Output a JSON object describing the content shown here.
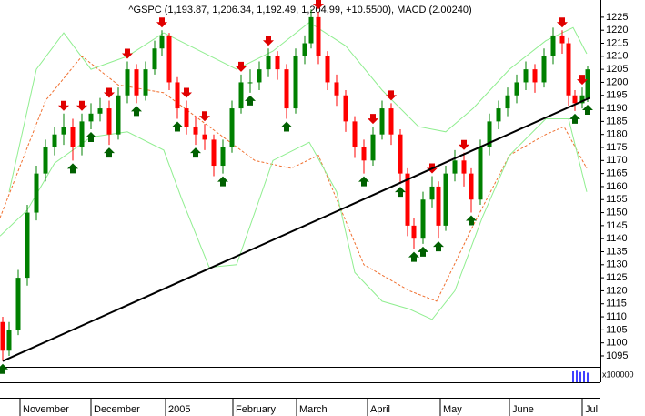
{
  "chart_data": {
    "type": "candlestick",
    "title": "^GSPC (1,193.87, 1,206.34, 1,192.49, 1,204.99, +10.5500), MACD (2.00240)",
    "xlim": [
      0,
      165
    ],
    "ylim": [
      1090.8,
      1231.6
    ],
    "yticks": [
      1095,
      1100,
      1105,
      1110,
      1115,
      1120,
      1125,
      1130,
      1135,
      1140,
      1145,
      1150,
      1155,
      1160,
      1165,
      1170,
      1175,
      1180,
      1185,
      1190,
      1195,
      1200,
      1205,
      1210,
      1215,
      1220,
      1225
    ],
    "xticks": [
      {
        "value": 5.5,
        "label": "November"
      },
      {
        "value": 25,
        "label": "December"
      },
      {
        "value": 45.5,
        "label": "2005"
      },
      {
        "value": 64,
        "label": "February"
      },
      {
        "value": 81.5,
        "label": "March"
      },
      {
        "value": 101,
        "label": "April"
      },
      {
        "value": 121,
        "label": "May"
      },
      {
        "value": 140,
        "label": "June"
      },
      {
        "value": 160,
        "label": "Jul"
      }
    ],
    "up_color": "#008000",
    "down_color": "#ff0000",
    "x": [
      0.75,
      2.5,
      5,
      7.5,
      10,
      12.5,
      15,
      17.5,
      20,
      22.5,
      25,
      27.5,
      30,
      32.5,
      35,
      37.5,
      40,
      42.5,
      44.5,
      46.5,
      48.75,
      51.25,
      53.75,
      56.25,
      58.75,
      61.25,
      63.75,
      66.25,
      68.75,
      71.25,
      73.75,
      76.25,
      78.75,
      81.25,
      83.75,
      85.5,
      87.5,
      90,
      92.5,
      95,
      97.5,
      100,
      102.5,
      105,
      107.5,
      110,
      112,
      113.75,
      116.25,
      118.75,
      120.5,
      122.5,
      125,
      127.5,
      129.5,
      132,
      134.5,
      137,
      139.5,
      142,
      144.5,
      147,
      149.5,
      152,
      154.5,
      156.25,
      158,
      160,
      161.5
    ],
    "open": [
      1108,
      1097,
      1105,
      1125,
      1150,
      1165,
      1175,
      1180,
      1183,
      1175,
      1185,
      1188,
      1190,
      1180,
      1195,
      1205,
      1195,
      1205,
      1213,
      1218,
      1200,
      1190,
      1183,
      1180,
      1178,
      1168,
      1175,
      1190,
      1200,
      1200,
      1205,
      1210,
      1205,
      1190,
      1210,
      1215,
      1225,
      1210,
      1200,
      1195,
      1185,
      1175,
      1170,
      1180,
      1190,
      1180,
      1165,
      1145,
      1140,
      1155,
      1160,
      1145,
      1165,
      1170,
      1165,
      1155,
      1175,
      1185,
      1190,
      1195,
      1200,
      1205,
      1200,
      1210,
      1218,
      1215,
      1195,
      1192,
      1193.87
    ],
    "high": [
      1110,
      1108,
      1128,
      1153,
      1168,
      1178,
      1183,
      1188,
      1186,
      1188,
      1192,
      1194,
      1193,
      1198,
      1208,
      1207,
      1208,
      1216,
      1220,
      1219,
      1202,
      1193,
      1187,
      1184,
      1180,
      1178,
      1193,
      1203,
      1205,
      1208,
      1213,
      1212,
      1207,
      1213,
      1218,
      1228,
      1227,
      1212,
      1203,
      1197,
      1187,
      1178,
      1183,
      1193,
      1192,
      1182,
      1167,
      1148,
      1158,
      1164,
      1162,
      1168,
      1174,
      1173,
      1167,
      1178,
      1188,
      1193,
      1198,
      1203,
      1208,
      1207,
      1213,
      1221,
      1220,
      1217,
      1197,
      1198,
      1206.34
    ],
    "low": [
      1093,
      1095,
      1103,
      1122,
      1147,
      1162,
      1172,
      1176,
      1170,
      1172,
      1182,
      1185,
      1176,
      1178,
      1192,
      1192,
      1193,
      1203,
      1210,
      1197,
      1186,
      1180,
      1176,
      1174,
      1164,
      1165,
      1173,
      1188,
      1196,
      1197,
      1202,
      1201,
      1186,
      1188,
      1207,
      1213,
      1207,
      1197,
      1191,
      1181,
      1171,
      1165,
      1168,
      1178,
      1176,
      1161,
      1141,
      1136,
      1138,
      1152,
      1140,
      1143,
      1162,
      1160,
      1150,
      1153,
      1172,
      1182,
      1187,
      1192,
      1197,
      1196,
      1198,
      1207,
      1211,
      1191,
      1189,
      1190,
      1192.49
    ],
    "close": [
      1097,
      1105,
      1125,
      1150,
      1165,
      1175,
      1180,
      1183,
      1175,
      1185,
      1188,
      1190,
      1180,
      1195,
      1205,
      1195,
      1205,
      1213,
      1218,
      1200,
      1190,
      1183,
      1180,
      1178,
      1168,
      1175,
      1190,
      1200,
      1200,
      1205,
      1210,
      1205,
      1190,
      1210,
      1215,
      1225,
      1210,
      1200,
      1195,
      1185,
      1175,
      1170,
      1180,
      1190,
      1180,
      1165,
      1145,
      1140,
      1155,
      1160,
      1145,
      1165,
      1170,
      1165,
      1155,
      1175,
      1185,
      1190,
      1195,
      1200,
      1205,
      1200,
      1210,
      1218,
      1215,
      1195,
      1192,
      1195,
      1204.99
    ],
    "sell_signals": [
      7,
      9,
      12,
      14,
      18,
      21,
      23,
      27,
      30,
      36,
      42,
      44,
      49,
      53,
      64,
      67
    ],
    "buy_signals": [
      0,
      8,
      10,
      12,
      15,
      20,
      22,
      25,
      28,
      32,
      41,
      45,
      47,
      48,
      50,
      54,
      66,
      68
    ],
    "bands": [
      {
        "color": "#90ee90",
        "x": [
          2.5,
          10,
          17.5,
          25,
          35,
          45,
          55,
          65,
          75,
          85,
          95,
          105,
          115,
          122.5,
          130,
          140,
          150,
          157.5,
          161.25
        ],
        "values": [
          1158,
          1205,
          1219,
          1205,
          1210,
          1219,
          1212,
          1205,
          1212,
          1223,
          1214,
          1197,
          1183,
          1181,
          1190,
          1205,
          1216,
          1221,
          1211
        ]
      },
      {
        "color": "#f07030",
        "dashed": true,
        "x": [
          0,
          12.5,
          22.5,
          32.5,
          45,
          57.5,
          70,
          80,
          87.5,
          100,
          112.5,
          120,
          130,
          140,
          150,
          155,
          161.25
        ],
        "values": [
          1148,
          1193,
          1210,
          1199,
          1196,
          1183,
          1170,
          1167,
          1172,
          1130,
          1120,
          1116,
          1145,
          1172,
          1180,
          1183,
          1167
        ]
      },
      {
        "color": "#90ee90",
        "x": [
          0,
          7.5,
          15,
          25,
          35,
          45,
          50,
          57.5,
          65,
          75,
          85,
          92.5,
          97.5,
          105,
          112.5,
          118.75,
          125,
          132.5,
          140,
          150,
          156.25,
          161.25
        ],
        "values": [
          1141,
          1151,
          1169,
          1179,
          1181,
          1174,
          1155,
          1129,
          1130,
          1170,
          1177,
          1158,
          1127,
          1116,
          1113,
          1109,
          1120,
          1148,
          1172,
          1186,
          1186,
          1158
        ]
      }
    ],
    "trendline": {
      "color": "#000000",
      "x": [
        0.75,
        162
      ],
      "values": [
        1093,
        1194
      ]
    },
    "volume": {
      "label": "x100000",
      "color": "#0000ff",
      "ylim": [
        0,
        20000
      ],
      "x": [
        157.5,
        158.5,
        159.5,
        160.5,
        161.5
      ],
      "values": [
        16000,
        17000,
        15000,
        16000,
        14000
      ]
    }
  }
}
